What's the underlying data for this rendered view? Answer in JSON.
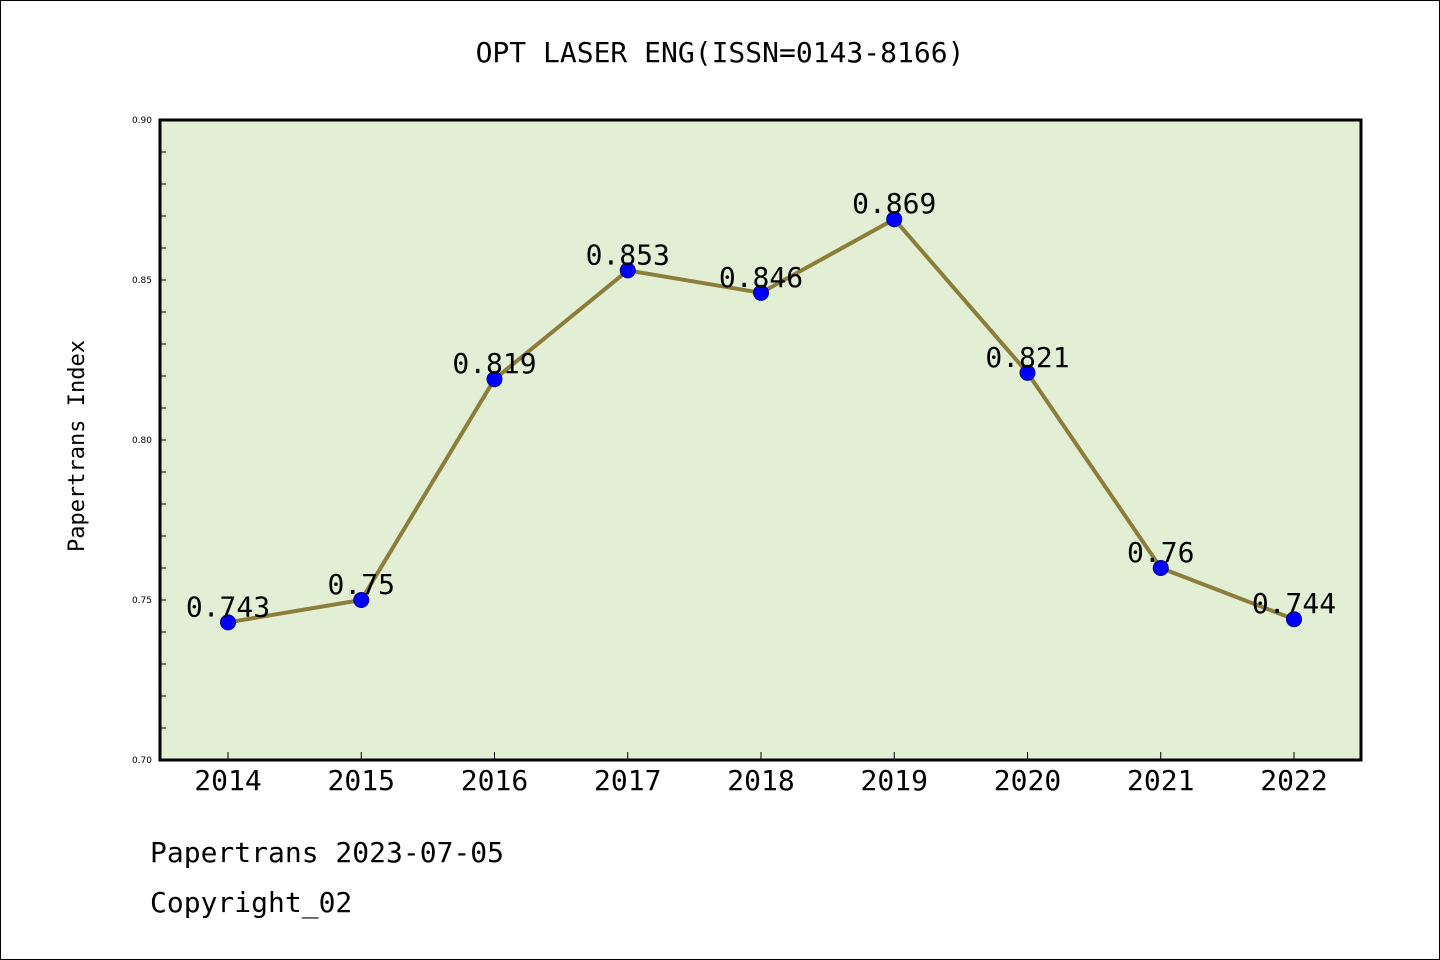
{
  "chart_data": {
    "type": "line",
    "title": "OPT LASER ENG(ISSN=0143-8166)",
    "xlabel": "",
    "ylabel": "Papertrans Index",
    "categories": [
      "2014",
      "2015",
      "2016",
      "2017",
      "2018",
      "2019",
      "2020",
      "2021",
      "2022"
    ],
    "series": [
      {
        "values": [
          0.743,
          0.75,
          0.819,
          0.853,
          0.846,
          0.869,
          0.821,
          0.76,
          0.744
        ],
        "data_labels": [
          "0.743",
          "0.75",
          "0.819",
          "0.853",
          "0.846",
          "0.869",
          "0.821",
          "0.76",
          "0.744"
        ]
      }
    ],
    "ylim": [
      0.7,
      0.9
    ],
    "yticks": [
      "0.70",
      "0.75",
      "0.80",
      "0.85",
      "0.90"
    ],
    "grid": false,
    "legend": "none",
    "colors": {
      "line": "#8B7D3A",
      "marker": "#0000FF",
      "plot_background": "#E2EFD5"
    }
  },
  "footer": {
    "line1": "Papertrans 2023-07-05",
    "line2": "Copyright_02"
  }
}
